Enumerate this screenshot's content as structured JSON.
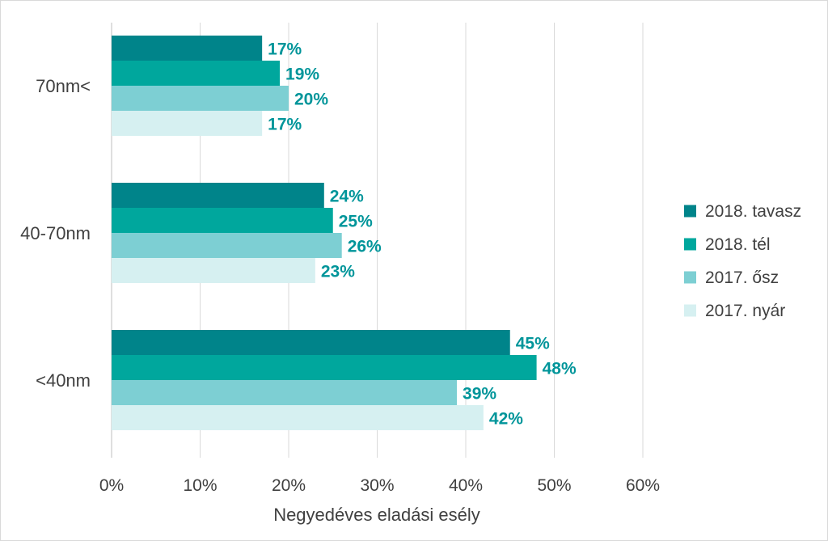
{
  "chart_data": {
    "type": "bar",
    "orientation": "horizontal",
    "categories": [
      "70nm<",
      "40-70nm",
      "<40nm"
    ],
    "series": [
      {
        "name": "2018. tavasz",
        "color": "#00848a",
        "values": [
          17,
          24,
          45
        ],
        "labels": [
          "17%",
          "24%",
          "45%"
        ]
      },
      {
        "name": "2018. tél",
        "color": "#00a79d",
        "values": [
          19,
          25,
          48
        ],
        "labels": [
          "19%",
          "25%",
          "48%"
        ]
      },
      {
        "name": "2017. ősz",
        "color": "#7dcfd3",
        "values": [
          20,
          26,
          39
        ],
        "labels": [
          "20%",
          "26%",
          "39%"
        ]
      },
      {
        "name": "2017. nyár",
        "color": "#d6f0f1",
        "values": [
          17,
          23,
          42
        ],
        "labels": [
          "17%",
          "23%",
          "42%"
        ]
      }
    ],
    "xlim": [
      0,
      60
    ],
    "xticks": [
      "0%",
      "10%",
      "20%",
      "30%",
      "40%",
      "50%",
      "60%"
    ],
    "xlabel": "Negyedéves eladási esély",
    "ylabel": "",
    "title": "",
    "grid": true,
    "legend": "right",
    "data_label_color": "#00959a"
  }
}
